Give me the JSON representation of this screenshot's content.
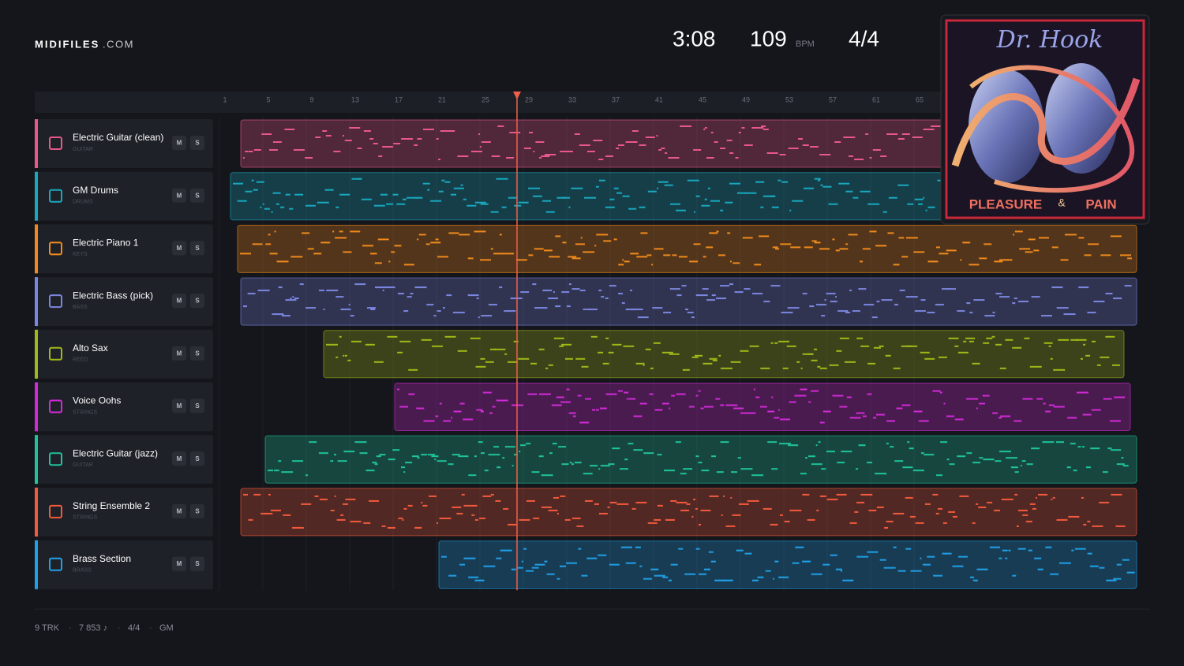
{
  "header": {
    "logo": "MIDIFILES",
    "logo_suffix": ".COM",
    "duration": "3:08",
    "tempo": "109",
    "tempo_unit": "BPM",
    "time_signature": "4/4"
  },
  "ruler": {
    "bars": [
      "1",
      "5",
      "9",
      "13",
      "17",
      "21",
      "25",
      "29",
      "33",
      "37",
      "41",
      "45",
      "49",
      "53",
      "57",
      "61",
      "65"
    ]
  },
  "tracks": [
    {
      "name": "Electric Guitar (clean)",
      "category": "GUITAR",
      "mute": "M",
      "solo": "S",
      "color": "#e8588a"
    },
    {
      "name": "GM Drums",
      "category": "DRUMS",
      "mute": "M",
      "solo": "S",
      "color": "#18a9c0"
    },
    {
      "name": "Electric Piano 1",
      "category": "KEYS",
      "mute": "M",
      "solo": "S",
      "color": "#f08a1c"
    },
    {
      "name": "Electric Bass (pick)",
      "category": "BASS",
      "mute": "M",
      "solo": "S",
      "color": "#7b86e0"
    },
    {
      "name": "Alto Sax",
      "category": "REED",
      "mute": "M",
      "solo": "S",
      "color": "#a0b818"
    },
    {
      "name": "Voice Oohs",
      "category": "STRINGS",
      "mute": "M",
      "solo": "S",
      "color": "#d22ad8"
    },
    {
      "name": "Electric Guitar (jazz)",
      "category": "GUITAR",
      "mute": "M",
      "solo": "S",
      "color": "#1ec49a"
    },
    {
      "name": "String Ensemble 2",
      "category": "STRINGS",
      "mute": "M",
      "solo": "S",
      "color": "#f25a3c"
    },
    {
      "name": "Brass Section",
      "category": "BRASS",
      "mute": "M",
      "solo": "S",
      "color": "#20a0e8"
    }
  ],
  "album": {
    "artist": "Dr. Hook",
    "left_word": "PLEASURE",
    "amp": "&",
    "right_word": "PAIN"
  },
  "footer": {
    "tracks": "9 TRK",
    "notes": "7 853 ♪",
    "time_signature": "4/4",
    "standard": "GM"
  }
}
